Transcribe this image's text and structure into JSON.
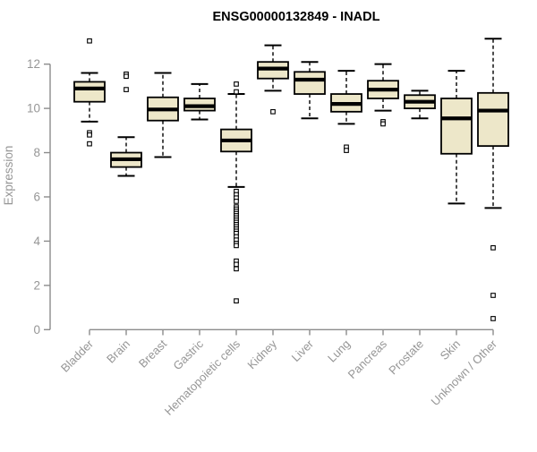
{
  "chart_data": {
    "type": "boxplot",
    "title": "ENSG00000132849 - INADL",
    "ylabel": "Expression",
    "xlabel": "",
    "ylim": [
      0,
      13.3
    ],
    "yticks": [
      0,
      2,
      4,
      6,
      8,
      10,
      12
    ],
    "grid": false,
    "legend": false,
    "colors": {
      "box_fill": "#EDE7C9",
      "box_border": "#000000",
      "median": "#000000",
      "whisker": "#000000",
      "outlier": "#000000",
      "axis": "#8C8C8C",
      "tick_label": "#969696",
      "axis_label": "#969696",
      "title": "#000000",
      "background": "#FFFFFF"
    },
    "categories": [
      "Bladder",
      "Brain",
      "Breast",
      "Gastric",
      "Hematopoietic cells",
      "Kidney",
      "Liver",
      "Lung",
      "Pancreas",
      "Prostate",
      "Skin",
      "Unknown / Other"
    ],
    "series": [
      {
        "category": "Bladder",
        "whisker_low": 9.4,
        "q1": 10.3,
        "median": 10.9,
        "q3": 11.2,
        "whisker_high": 11.6,
        "outliers": [
          13.05,
          8.9,
          8.8,
          8.4
        ]
      },
      {
        "category": "Brain",
        "whisker_low": 6.95,
        "q1": 7.35,
        "median": 7.7,
        "q3": 8.0,
        "whisker_high": 8.7,
        "outliers": [
          11.55,
          11.45,
          10.85
        ]
      },
      {
        "category": "Breast",
        "whisker_low": 7.8,
        "q1": 9.45,
        "median": 9.95,
        "q3": 10.5,
        "whisker_high": 11.6,
        "outliers": []
      },
      {
        "category": "Gastric",
        "whisker_low": 9.5,
        "q1": 9.9,
        "median": 10.1,
        "q3": 10.45,
        "whisker_high": 11.1,
        "outliers": []
      },
      {
        "category": "Hematopoietic cells",
        "whisker_low": 6.45,
        "q1": 8.05,
        "median": 8.55,
        "q3": 9.05,
        "whisker_high": 10.65,
        "outliers": [
          11.1,
          10.75,
          6.25,
          6.1,
          5.95,
          5.8,
          5.55,
          5.45,
          5.35,
          5.25,
          5.15,
          5.05,
          4.95,
          4.85,
          4.75,
          4.65,
          4.55,
          4.45,
          4.35,
          4.2,
          4.05,
          3.9,
          3.8,
          3.1,
          2.95,
          2.75,
          1.3
        ]
      },
      {
        "category": "Kidney",
        "whisker_low": 10.8,
        "q1": 11.35,
        "median": 11.8,
        "q3": 12.1,
        "whisker_high": 12.85,
        "outliers": [
          9.85
        ]
      },
      {
        "category": "Liver",
        "whisker_low": 9.55,
        "q1": 10.65,
        "median": 11.3,
        "q3": 11.65,
        "whisker_high": 12.1,
        "outliers": []
      },
      {
        "category": "Lung",
        "whisker_low": 9.3,
        "q1": 9.85,
        "median": 10.2,
        "q3": 10.65,
        "whisker_high": 11.7,
        "outliers": [
          8.25,
          8.1
        ]
      },
      {
        "category": "Pancreas",
        "whisker_low": 9.9,
        "q1": 10.45,
        "median": 10.85,
        "q3": 11.25,
        "whisker_high": 12.0,
        "outliers": [
          9.4,
          9.3
        ]
      },
      {
        "category": "Prostate",
        "whisker_low": 9.55,
        "q1": 10.0,
        "median": 10.3,
        "q3": 10.6,
        "whisker_high": 10.8,
        "outliers": []
      },
      {
        "category": "Skin",
        "whisker_low": 5.7,
        "q1": 7.95,
        "median": 9.55,
        "q3": 10.45,
        "whisker_high": 11.7,
        "outliers": []
      },
      {
        "category": "Unknown / Other",
        "whisker_low": 5.5,
        "q1": 8.3,
        "median": 9.9,
        "q3": 10.7,
        "whisker_high": 13.15,
        "outliers": [
          3.7,
          1.55,
          0.5
        ]
      }
    ]
  }
}
